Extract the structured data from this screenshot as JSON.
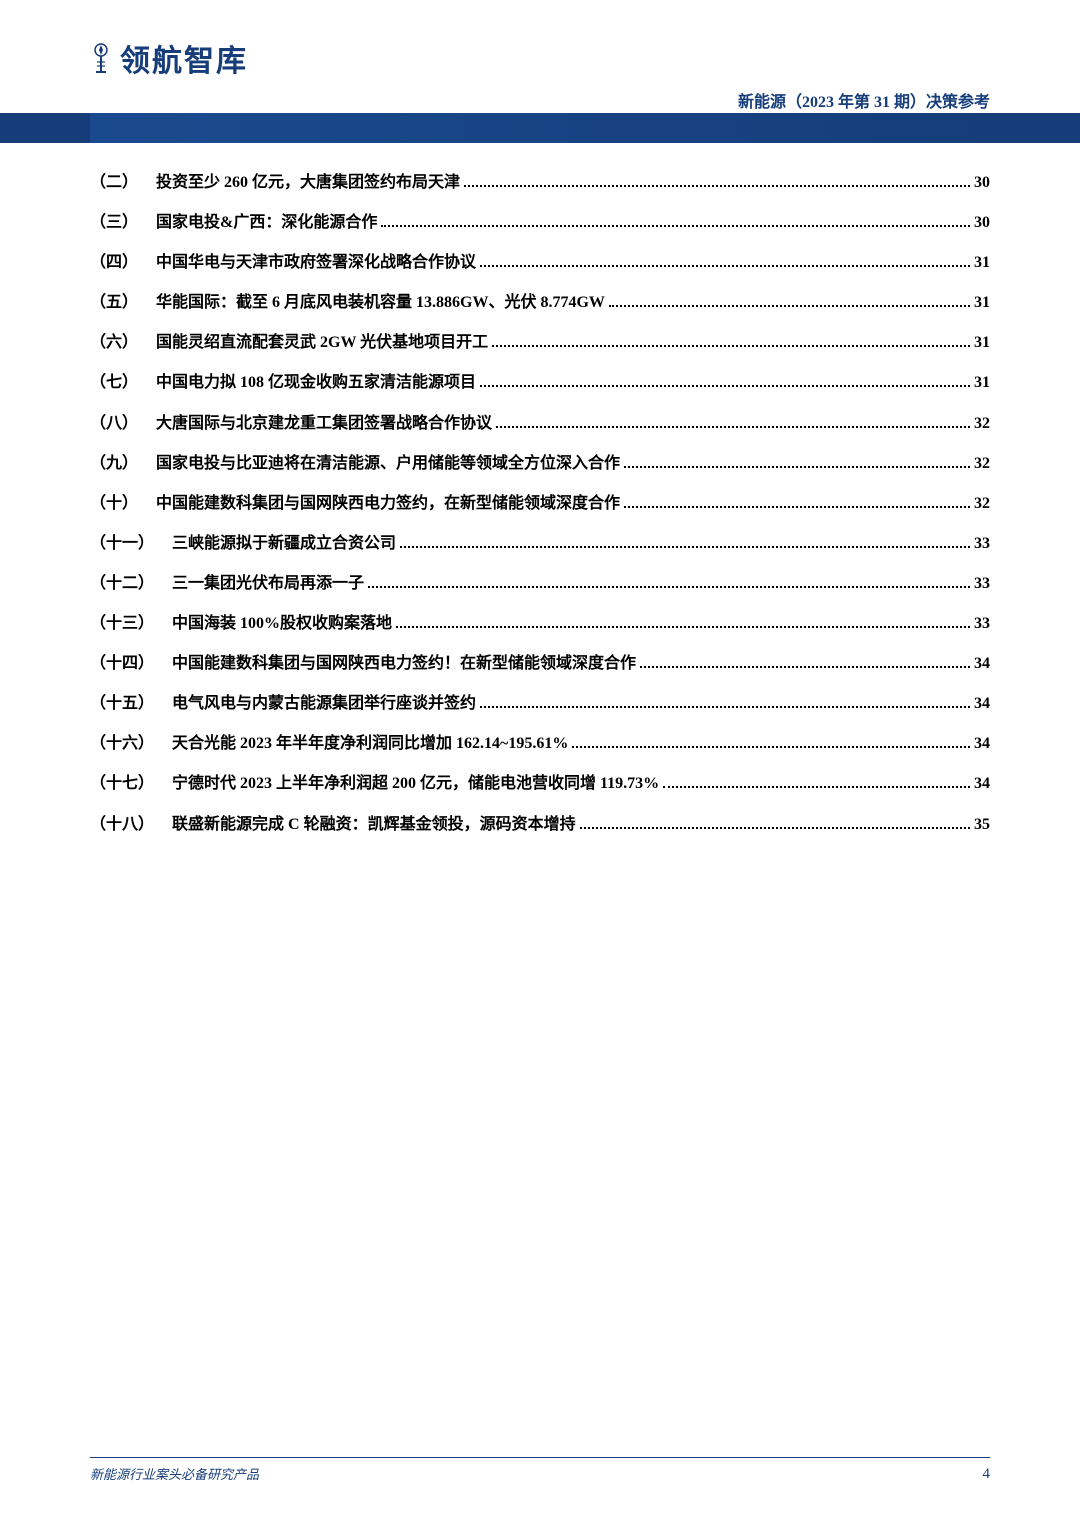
{
  "colors": {
    "brand": "#163d7a",
    "text": "#000000",
    "background": "#ffffff"
  },
  "header": {
    "logo_text": "领航智库",
    "right_text": "新能源（2023 年第 31 期）决策参考"
  },
  "toc": {
    "font_size": 16,
    "font_weight": "bold",
    "row_spacing": 14.5,
    "entries": [
      {
        "num": "（二）",
        "title": "投资至少 260 亿元，大唐集团签约布局天津",
        "page": "30"
      },
      {
        "num": "（三）",
        "title": "国家电投&广西：深化能源合作",
        "page": "30"
      },
      {
        "num": "（四）",
        "title": "中国华电与天津市政府签署深化战略合作协议",
        "page": "31"
      },
      {
        "num": "（五）",
        "title": "华能国际：截至 6 月底风电装机容量 13.886GW、光伏 8.774GW",
        "page": "31"
      },
      {
        "num": "（六）",
        "title": "国能灵绍直流配套灵武 2GW 光伏基地项目开工",
        "page": "31"
      },
      {
        "num": "（七）",
        "title": "中国电力拟 108 亿现金收购五家清洁能源项目",
        "page": "31"
      },
      {
        "num": "（八）",
        "title": "大唐国际与北京建龙重工集团签署战略合作协议",
        "page": "32"
      },
      {
        "num": "（九）",
        "title": "国家电投与比亚迪将在清洁能源、户用储能等领域全方位深入合作",
        "page": "32"
      },
      {
        "num": "（十）",
        "title": "中国能建数科集团与国网陕西电力签约，在新型储能领域深度合作",
        "page": "32"
      },
      {
        "num": "（十一）",
        "title": "三峡能源拟于新疆成立合资公司",
        "page": "33"
      },
      {
        "num": "（十二）",
        "title": "三一集团光伏布局再添一子",
        "page": "33"
      },
      {
        "num": "（十三）",
        "title": "中国海装 100%股权收购案落地",
        "page": "33"
      },
      {
        "num": "（十四）",
        "title": "中国能建数科集团与国网陕西电力签约！在新型储能领域深度合作",
        "page": "34"
      },
      {
        "num": "（十五）",
        "title": "电气风电与内蒙古能源集团举行座谈并签约",
        "page": "34"
      },
      {
        "num": "（十六）",
        "title": "天合光能 2023 年半年度净利润同比增加 162.14~195.61%",
        "page": "34"
      },
      {
        "num": "（十七）",
        "title": "宁德时代 2023 上半年净利润超 200 亿元，储能电池营收同增 119.73%",
        "page": "34"
      },
      {
        "num": "（十八）",
        "title": "联盛新能源完成 C 轮融资：凯辉基金领投，源码资本增持",
        "page": "35"
      }
    ]
  },
  "footer": {
    "left": "新能源行业案头必备研究产品",
    "page_number": "4"
  }
}
